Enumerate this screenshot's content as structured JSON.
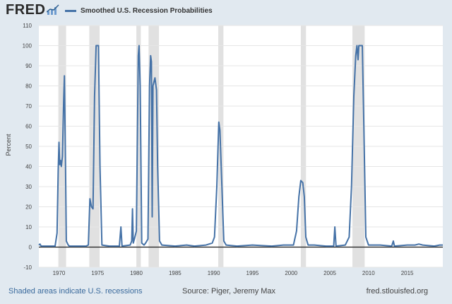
{
  "header": {
    "logo_text": "FRED",
    "logo_icon": "chart-trend-icon",
    "legend_label": "Smoothed U.S. Recession Probabilities"
  },
  "footer": {
    "note": "Shaded areas indicate U.S. recessions",
    "source": "Source: Piger, Jeremy Max",
    "site": "fred.stlouisfed.org"
  },
  "colors": {
    "line": "#4572a7",
    "recession_shade": "#e1e1e1",
    "grid": "#e6e6e6",
    "background": "#e1e9f0"
  },
  "chart_data": {
    "type": "line",
    "title": "",
    "xlabel": "",
    "ylabel": "Percent",
    "xlim": [
      1967.4,
      2019.6
    ],
    "ylim": [
      -10,
      110
    ],
    "yticks": [
      -10,
      0,
      10,
      20,
      30,
      40,
      50,
      60,
      70,
      80,
      90,
      100,
      110
    ],
    "xticks": [
      1970,
      1975,
      1980,
      1985,
      1990,
      1995,
      2000,
      2005,
      2010,
      2015
    ],
    "grid": true,
    "legend_position": "top-left",
    "recessions": [
      [
        1969.92,
        1970.92
      ],
      [
        1973.92,
        1975.25
      ],
      [
        1980.0,
        1980.58
      ],
      [
        1981.58,
        1982.92
      ],
      [
        1990.58,
        1991.25
      ],
      [
        2001.25,
        2001.92
      ],
      [
        2007.92,
        2009.5
      ]
    ],
    "series": [
      {
        "name": "Smoothed U.S. Recession Probabilities",
        "points": [
          [
            1967.4,
            1
          ],
          [
            1967.55,
            1.5
          ],
          [
            1967.7,
            0.5
          ],
          [
            1968.5,
            0.5
          ],
          [
            1969.5,
            0.5
          ],
          [
            1969.75,
            7
          ],
          [
            1969.9,
            38
          ],
          [
            1970.0,
            52
          ],
          [
            1970.1,
            41
          ],
          [
            1970.2,
            43
          ],
          [
            1970.3,
            40
          ],
          [
            1970.45,
            45
          ],
          [
            1970.6,
            72
          ],
          [
            1970.7,
            85
          ],
          [
            1970.85,
            40
          ],
          [
            1970.95,
            3
          ],
          [
            1971.2,
            1
          ],
          [
            1971.35,
            0.5
          ],
          [
            1973.5,
            0.5
          ],
          [
            1973.8,
            1
          ],
          [
            1974.0,
            24
          ],
          [
            1974.2,
            20
          ],
          [
            1974.4,
            19
          ],
          [
            1974.6,
            75
          ],
          [
            1974.8,
            100
          ],
          [
            1975.1,
            100
          ],
          [
            1975.3,
            40
          ],
          [
            1975.55,
            1
          ],
          [
            1976.5,
            0.5
          ],
          [
            1977.8,
            0.5
          ],
          [
            1978.0,
            10
          ],
          [
            1978.15,
            0.5
          ],
          [
            1979.2,
            1
          ],
          [
            1979.4,
            3
          ],
          [
            1979.5,
            19
          ],
          [
            1979.6,
            2
          ],
          [
            1979.75,
            4
          ],
          [
            1980.0,
            8
          ],
          [
            1980.25,
            95
          ],
          [
            1980.35,
            100
          ],
          [
            1980.5,
            80
          ],
          [
            1980.7,
            2
          ],
          [
            1981.0,
            1
          ],
          [
            1981.2,
            2
          ],
          [
            1981.5,
            4
          ],
          [
            1981.7,
            80
          ],
          [
            1981.85,
            95
          ],
          [
            1981.95,
            92
          ],
          [
            1982.05,
            15
          ],
          [
            1982.15,
            80
          ],
          [
            1982.4,
            84
          ],
          [
            1982.6,
            78
          ],
          [
            1982.75,
            40
          ],
          [
            1983.0,
            3
          ],
          [
            1983.3,
            1
          ],
          [
            1985.0,
            0.5
          ],
          [
            1986.5,
            1
          ],
          [
            1987.5,
            0.5
          ],
          [
            1989.0,
            1
          ],
          [
            1989.8,
            2
          ],
          [
            1990.1,
            5
          ],
          [
            1990.4,
            30
          ],
          [
            1990.65,
            62
          ],
          [
            1990.8,
            58
          ],
          [
            1991.05,
            30
          ],
          [
            1991.3,
            3
          ],
          [
            1991.6,
            1
          ],
          [
            1993.0,
            0.5
          ],
          [
            1995.0,
            1
          ],
          [
            1997.5,
            0.5
          ],
          [
            1999.0,
            1
          ],
          [
            2000.3,
            1
          ],
          [
            2000.7,
            8
          ],
          [
            2001.0,
            25
          ],
          [
            2001.25,
            33
          ],
          [
            2001.5,
            32
          ],
          [
            2001.7,
            25
          ],
          [
            2001.9,
            5
          ],
          [
            2002.2,
            1
          ],
          [
            2003.0,
            1
          ],
          [
            2004.5,
            0.5
          ],
          [
            2005.5,
            0.5
          ],
          [
            2005.65,
            10
          ],
          [
            2005.8,
            0.5
          ],
          [
            2007.0,
            1
          ],
          [
            2007.5,
            5
          ],
          [
            2007.8,
            30
          ],
          [
            2008.1,
            75
          ],
          [
            2008.35,
            95
          ],
          [
            2008.5,
            100
          ],
          [
            2008.65,
            93
          ],
          [
            2008.75,
            100
          ],
          [
            2009.2,
            100
          ],
          [
            2009.4,
            60
          ],
          [
            2009.65,
            5
          ],
          [
            2010.0,
            1
          ],
          [
            2011.5,
            1
          ],
          [
            2013.0,
            0.5
          ],
          [
            2013.2,
            3
          ],
          [
            2013.35,
            0.5
          ],
          [
            2015.0,
            1
          ],
          [
            2016.0,
            1
          ],
          [
            2016.5,
            1.5
          ],
          [
            2017.0,
            1
          ],
          [
            2018.5,
            0.5
          ],
          [
            2019.2,
            1
          ],
          [
            2019.6,
            1
          ]
        ]
      }
    ]
  }
}
